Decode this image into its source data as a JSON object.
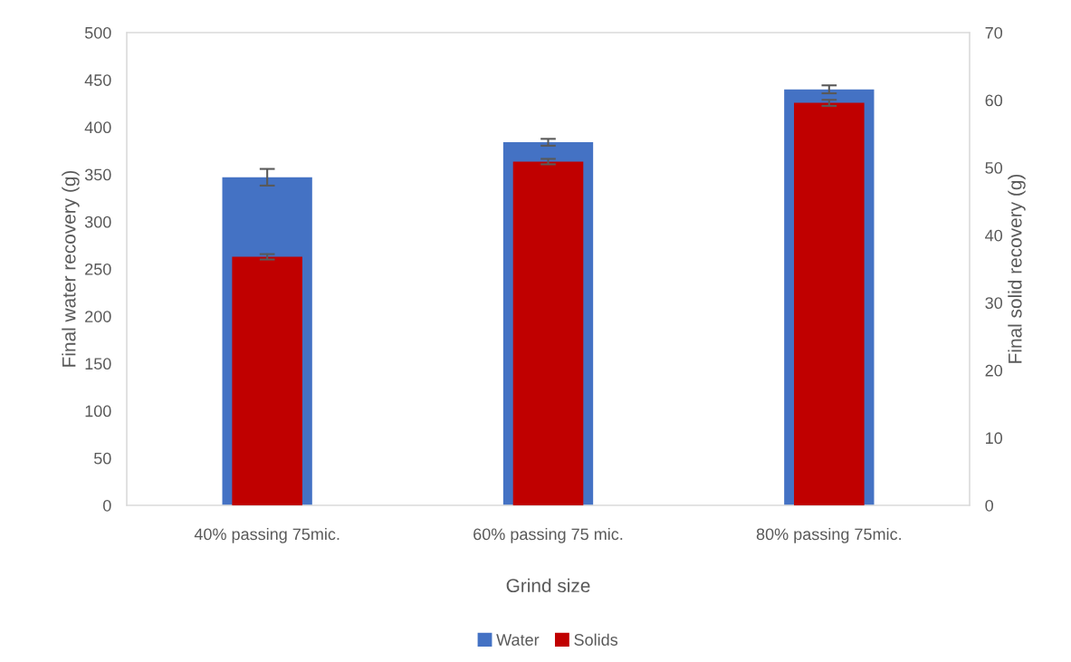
{
  "chart_data": {
    "type": "bar",
    "xlabel": "Grind size",
    "ylabel": "Final water recovery (g)",
    "y2label": "Final solid recovery (g)",
    "categories": [
      "40% passing 75mic.",
      "60% passing 75 mic.",
      "80% passing 75mic."
    ],
    "series": [
      {
        "name": "Water",
        "color": "#4472c4",
        "values": [
          347,
          384,
          440
        ],
        "errors": [
          8.8,
          3.6,
          4.2
        ]
      },
      {
        "name": "Solids",
        "color": "#c00000",
        "values": [
          36.8,
          50.9,
          59.6
        ],
        "errors": [
          0.4,
          0.4,
          0.45
        ],
        "axis": "y2"
      }
    ],
    "ylim": [
      0,
      500
    ],
    "yticks": [
      0,
      50,
      100,
      150,
      200,
      250,
      300,
      350,
      400,
      450,
      500
    ],
    "y2lim": [
      0,
      70
    ],
    "y2ticks": [
      0,
      10,
      20,
      30,
      40,
      50,
      60,
      70
    ],
    "grid": false,
    "legend": "bottom"
  }
}
